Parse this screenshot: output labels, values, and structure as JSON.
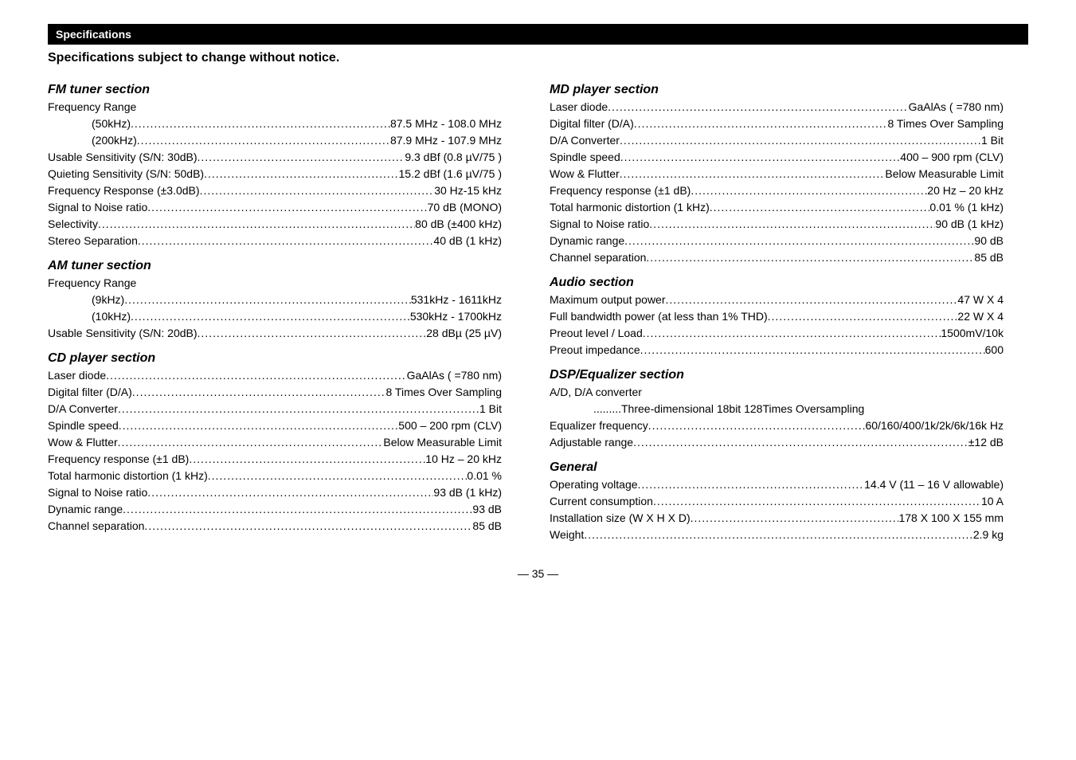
{
  "header": "Specifications",
  "subtitle": "Specifications subject to change without notice.",
  "footer": "— 35 —",
  "left_sections": [
    {
      "title": "FM tuner section",
      "rows": [
        {
          "label": "Frequency Range",
          "value": "",
          "nodots": true
        },
        {
          "label": "(50kHz)",
          "value": "87.5 MHz - 108.0 MHz",
          "indent": true
        },
        {
          "label": "(200kHz)",
          "value": "87.9 MHz - 107.9 MHz",
          "indent": true
        },
        {
          "label": "Usable Sensitivity (S/N: 30dB)",
          "value": "9.3 dBf (0.8 µV/75   )"
        },
        {
          "label": "Quieting Sensitivity (S/N: 50dB)",
          "value": "15.2 dBf (1.6 µV/75   )"
        },
        {
          "label": "Frequency Response (±3.0dB)",
          "value": "30 Hz-15 kHz"
        },
        {
          "label": "Signal to Noise ratio",
          "value": "70 dB (MONO)"
        },
        {
          "label": "Selectivity",
          "value": " 80 dB (±400 kHz)"
        },
        {
          "label": "Stereo Separation",
          "value": "40 dB (1 kHz)"
        }
      ]
    },
    {
      "title": "AM tuner section",
      "rows": [
        {
          "label": "Frequency Range",
          "value": "",
          "nodots": true
        },
        {
          "label": "(9kHz)",
          "value": "531kHz - 1611kHz",
          "indent": true
        },
        {
          "label": "(10kHz)",
          "value": "530kHz - 1700kHz",
          "indent": true
        },
        {
          "label": "Usable Sensitivity (S/N: 20dB)",
          "value": "28 dBµ (25 µV)"
        }
      ]
    },
    {
      "title": "CD player section",
      "rows": [
        {
          "label": "Laser diode",
          "value": "GaAlAs (  =780 nm)"
        },
        {
          "label": "Digital filter (D/A)",
          "value": "8 Times Over Sampling"
        },
        {
          "label": "D/A Converter",
          "value": "1 Bit"
        },
        {
          "label": "Spindle speed",
          "value": "500 – 200 rpm (CLV)"
        },
        {
          "label": "Wow & Flutter",
          "value": "Below Measurable Limit"
        },
        {
          "label": "Frequency response (±1 dB)",
          "value": "10 Hz – 20 kHz"
        },
        {
          "label": "Total harmonic distortion (1 kHz)",
          "value": "0.01 %"
        },
        {
          "label": "Signal to Noise ratio",
          "value": "93 dB (1 kHz)"
        },
        {
          "label": "Dynamic range",
          "value": "93 dB"
        },
        {
          "label": "Channel separation",
          "value": "85 dB"
        }
      ]
    }
  ],
  "right_sections": [
    {
      "title": "MD player section",
      "rows": [
        {
          "label": "Laser diode",
          "value": "GaAlAs (  =780 nm)"
        },
        {
          "label": "Digital filter (D/A)",
          "value": "8 Times Over Sampling"
        },
        {
          "label": "D/A Converter",
          "value": "1 Bit"
        },
        {
          "label": "Spindle speed",
          "value": "400 – 900 rpm (CLV)"
        },
        {
          "label": "Wow & Flutter",
          "value": "Below Measurable Limit"
        },
        {
          "label": "Frequency response (±1 dB)",
          "value": "20 Hz – 20 kHz"
        },
        {
          "label": "Total harmonic distortion (1 kHz)",
          "value": "0.01 % (1 kHz)"
        },
        {
          "label": "Signal to Noise ratio",
          "value": "90 dB (1 kHz)"
        },
        {
          "label": "Dynamic range",
          "value": "90 dB"
        },
        {
          "label": "Channel separation",
          "value": "85 dB"
        }
      ]
    },
    {
      "title": "Audio section",
      "rows": [
        {
          "label": "Maximum output power",
          "value": "47 W X 4"
        },
        {
          "label": "Full bandwidth power (at less than 1% THD)",
          "value": "22 W X 4"
        },
        {
          "label": "Preout level / Load",
          "value": "1500mV/10k"
        },
        {
          "label": "Preout impedance",
          "value": " 600"
        }
      ]
    },
    {
      "title": "DSP/Equalizer section",
      "rows": [
        {
          "label": "A/D, D/A converter",
          "value": "",
          "nodots": true
        },
        {
          "label": ".........Three-dimensional      18bit 128Times Oversampling",
          "value": "",
          "nodots": true,
          "indent": true
        },
        {
          "label": "Equalizer frequency",
          "value": "60/160/400/1k/2k/6k/16k Hz"
        },
        {
          "label": "Adjustable range",
          "value": "±12 dB"
        }
      ]
    },
    {
      "title": "General",
      "rows": [
        {
          "label": "Operating voltage",
          "value": "14.4 V (11 – 16 V allowable)"
        },
        {
          "label": "Current consumption",
          "value": "10 A"
        },
        {
          "label": "Installation size (W X H X D)",
          "value": "178 X 100 X 155 mm"
        },
        {
          "label": "Weight",
          "value": "2.9 kg"
        }
      ]
    }
  ]
}
